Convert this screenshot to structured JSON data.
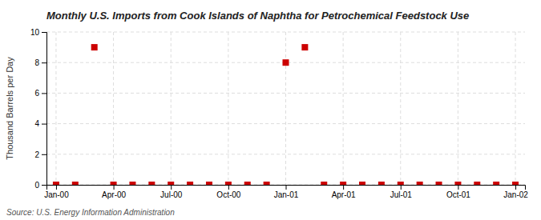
{
  "chart_data": {
    "type": "scatter",
    "title": "Monthly U.S. Imports from Cook Islands of Naphtha for Petrochemical Feedstock Use",
    "y_label": "Thousand Barrels per Day",
    "source": "Source: U.S. Energy Information Administration",
    "categories": [
      "Jan-00",
      null,
      null,
      "Apr-00",
      null,
      null,
      "Jul-00",
      null,
      null,
      "Oct-00",
      null,
      null,
      "Jan-01",
      null,
      null,
      "Apr-01",
      null,
      null,
      "Jul-01",
      null,
      null,
      "Oct-01",
      null,
      null,
      "Jan-02"
    ],
    "values": [
      0,
      0,
      9,
      0,
      0,
      0,
      0,
      0,
      0,
      0,
      0,
      0,
      8,
      9,
      0,
      0,
      0,
      0,
      0,
      0,
      0,
      0,
      0,
      0,
      0
    ],
    "color": "#cc0000",
    "marker": "square",
    "ylim": [
      0,
      10
    ],
    "yticks": [
      0,
      2,
      4,
      6,
      8,
      10
    ],
    "grid": true
  }
}
